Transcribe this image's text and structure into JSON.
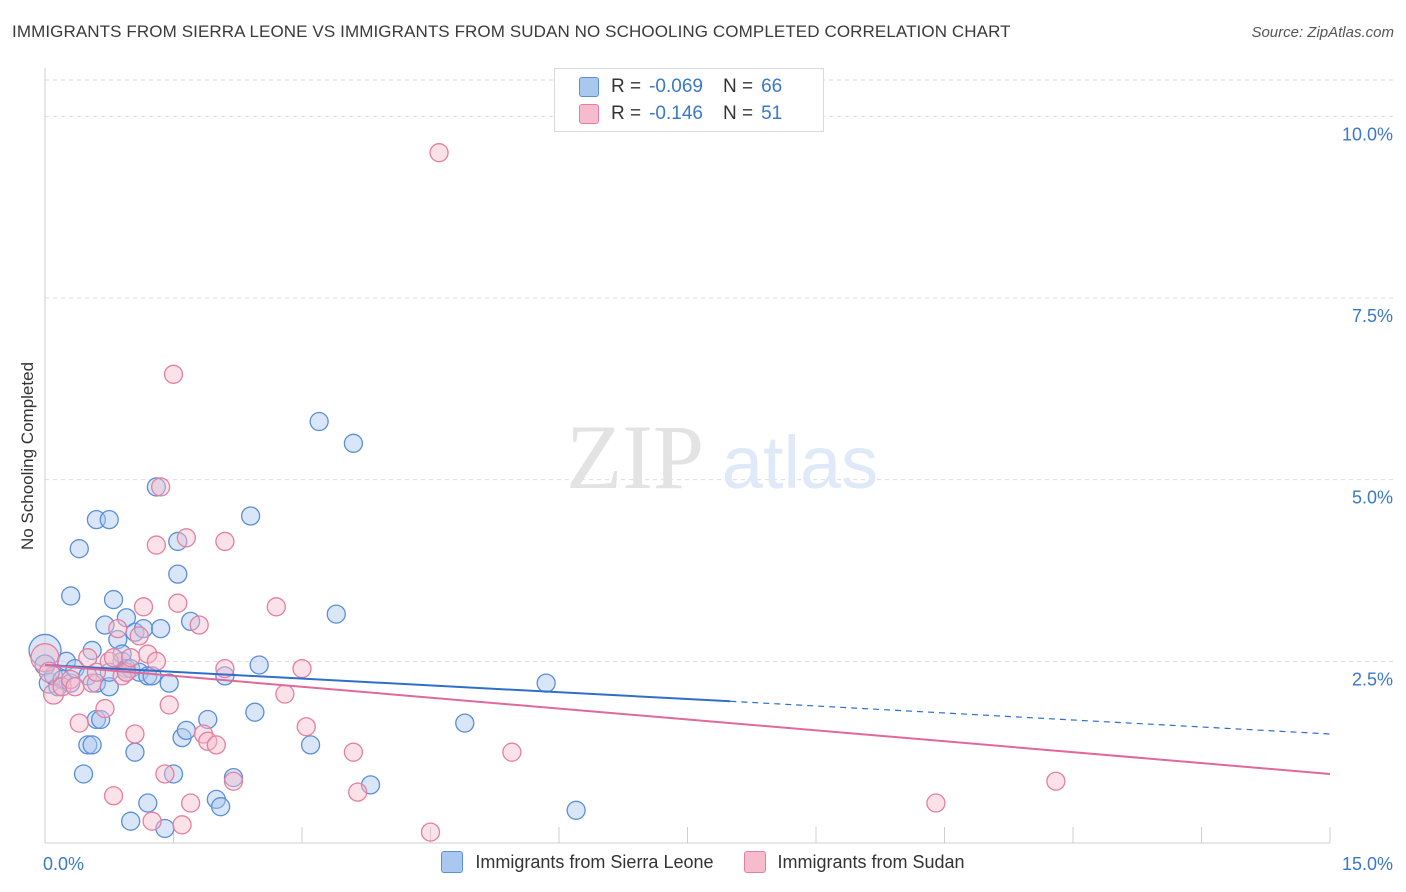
{
  "header": {
    "title": "IMMIGRANTS FROM SIERRA LEONE VS IMMIGRANTS FROM SUDAN NO SCHOOLING COMPLETED CORRELATION CHART",
    "source": "Source: ZipAtlas.com"
  },
  "watermark": {
    "zip": "ZIP",
    "atlas": "atlas"
  },
  "legend": {
    "rows": [
      {
        "r_label": "R =",
        "r_value": "-0.069",
        "n_label": "N =",
        "n_value": "66"
      },
      {
        "r_label": "R =",
        "r_value": "-0.146",
        "n_label": "N =",
        "n_value": "51"
      }
    ]
  },
  "colors": {
    "blue_fill": "#aac7ef",
    "blue_stroke": "#5b8fd6",
    "blue_line": "#2f6fcb",
    "pink_fill": "#f6bccd",
    "pink_stroke": "#e57fa0",
    "pink_line": "#e0699a",
    "tick_label": "#3a78c9",
    "grid": "#dddddd"
  },
  "chart_data": {
    "type": "scatter",
    "title": "IMMIGRANTS FROM SIERRA LEONE VS IMMIGRANTS FROM SUDAN NO SCHOOLING COMPLETED CORRELATION CHART",
    "xlabel": "",
    "ylabel": "No Schooling Completed",
    "xlim": [
      0,
      15
    ],
    "ylim": [
      0,
      10.5
    ],
    "x_tick_labels": [
      "0.0%",
      "15.0%"
    ],
    "y_ticks": [
      2.5,
      5.0,
      7.5,
      10.0
    ],
    "y_tick_labels": [
      "2.5%",
      "5.0%",
      "7.5%",
      "10.0%"
    ],
    "grid": true,
    "legend_placement": "top-center",
    "series": [
      {
        "name": "Immigrants from Sierra Leone",
        "r": -0.069,
        "n": 66,
        "trend": {
          "x0": 0,
          "y0": 2.45,
          "x1": 8.0,
          "y1": 1.95,
          "dashed_to_x": 15,
          "dashed_to_y": 1.5
        },
        "points": [
          [
            0.0,
            2.65,
            16
          ],
          [
            0.0,
            2.45,
            10
          ],
          [
            0.05,
            2.2,
            10
          ],
          [
            0.1,
            2.3,
            9
          ],
          [
            0.15,
            2.15,
            9
          ],
          [
            0.2,
            2.25,
            9
          ],
          [
            0.25,
            2.5,
            9
          ],
          [
            0.3,
            2.2,
            9
          ],
          [
            0.3,
            3.4,
            9
          ],
          [
            0.35,
            2.4,
            9
          ],
          [
            0.4,
            4.05,
            9
          ],
          [
            0.45,
            0.95,
            9
          ],
          [
            0.5,
            1.35,
            9
          ],
          [
            0.55,
            1.35,
            9
          ],
          [
            0.5,
            2.3,
            9
          ],
          [
            0.55,
            2.65,
            9
          ],
          [
            0.6,
            1.7,
            9
          ],
          [
            0.6,
            2.2,
            9
          ],
          [
            0.65,
            1.7,
            9
          ],
          [
            0.6,
            4.45,
            9
          ],
          [
            0.7,
            3.0,
            9
          ],
          [
            0.75,
            2.15,
            9
          ],
          [
            0.75,
            2.35,
            9
          ],
          [
            0.8,
            3.35,
            9
          ],
          [
            0.75,
            4.45,
            9
          ],
          [
            0.85,
            2.8,
            9
          ],
          [
            0.9,
            2.5,
            9
          ],
          [
            0.9,
            2.6,
            9
          ],
          [
            0.95,
            2.4,
            9
          ],
          [
            0.95,
            2.35,
            9
          ],
          [
            0.95,
            3.1,
            9
          ],
          [
            1.0,
            2.4,
            9
          ],
          [
            1.0,
            0.3,
            9
          ],
          [
            1.05,
            1.25,
            9
          ],
          [
            1.05,
            2.9,
            9
          ],
          [
            1.1,
            2.35,
            9
          ],
          [
            1.15,
            2.95,
            9
          ],
          [
            1.2,
            0.55,
            9
          ],
          [
            1.2,
            2.3,
            9
          ],
          [
            1.25,
            2.3,
            9
          ],
          [
            1.3,
            4.9,
            9
          ],
          [
            1.35,
            2.95,
            9
          ],
          [
            1.4,
            0.2,
            9
          ],
          [
            1.45,
            2.2,
            9
          ],
          [
            1.5,
            0.95,
            9
          ],
          [
            1.55,
            3.7,
            9
          ],
          [
            1.55,
            4.15,
            9
          ],
          [
            1.6,
            1.45,
            9
          ],
          [
            1.65,
            1.55,
            9
          ],
          [
            1.7,
            3.05,
            9
          ],
          [
            1.9,
            1.7,
            9
          ],
          [
            2.0,
            0.6,
            9
          ],
          [
            2.05,
            0.5,
            9
          ],
          [
            2.1,
            2.3,
            9
          ],
          [
            2.2,
            0.9,
            9
          ],
          [
            2.4,
            4.5,
            9
          ],
          [
            2.45,
            1.8,
            9
          ],
          [
            2.5,
            2.45,
            9
          ],
          [
            3.1,
            1.35,
            9
          ],
          [
            3.2,
            5.8,
            9
          ],
          [
            3.4,
            3.15,
            9
          ],
          [
            3.6,
            5.5,
            9
          ],
          [
            3.8,
            0.8,
            9
          ],
          [
            4.9,
            1.65,
            9
          ],
          [
            5.85,
            2.2,
            9
          ],
          [
            6.2,
            0.45,
            9
          ]
        ]
      },
      {
        "name": "Immigrants from Sudan",
        "r": -0.146,
        "n": 51,
        "trend": {
          "x0": 0,
          "y0": 2.45,
          "x1": 15,
          "y1": 0.95
        },
        "points": [
          [
            0.0,
            2.55,
            14
          ],
          [
            0.05,
            2.35,
            10
          ],
          [
            0.1,
            2.05,
            10
          ],
          [
            0.2,
            2.15,
            9
          ],
          [
            0.3,
            2.25,
            9
          ],
          [
            0.35,
            2.15,
            9
          ],
          [
            0.4,
            1.65,
            9
          ],
          [
            0.5,
            2.55,
            9
          ],
          [
            0.55,
            2.2,
            9
          ],
          [
            0.6,
            2.35,
            9
          ],
          [
            0.7,
            1.85,
            9
          ],
          [
            0.75,
            2.5,
            9
          ],
          [
            0.8,
            2.55,
            9
          ],
          [
            0.8,
            0.65,
            9
          ],
          [
            0.85,
            2.95,
            9
          ],
          [
            0.9,
            2.3,
            9
          ],
          [
            0.95,
            2.35,
            9
          ],
          [
            1.0,
            2.55,
            9
          ],
          [
            1.05,
            1.5,
            9
          ],
          [
            1.1,
            2.85,
            9
          ],
          [
            1.15,
            3.25,
            9
          ],
          [
            1.2,
            2.6,
            9
          ],
          [
            1.25,
            0.3,
            9
          ],
          [
            1.3,
            4.1,
            9
          ],
          [
            1.3,
            2.5,
            9
          ],
          [
            1.35,
            4.9,
            9
          ],
          [
            1.4,
            0.95,
            9
          ],
          [
            1.45,
            1.9,
            9
          ],
          [
            1.5,
            6.45,
            9
          ],
          [
            1.55,
            3.3,
            9
          ],
          [
            1.6,
            0.25,
            9
          ],
          [
            1.65,
            4.2,
            9
          ],
          [
            1.7,
            0.55,
            9
          ],
          [
            1.8,
            3.0,
            9
          ],
          [
            1.85,
            1.5,
            9
          ],
          [
            1.9,
            1.4,
            9
          ],
          [
            2.0,
            1.35,
            9
          ],
          [
            2.1,
            2.4,
            9
          ],
          [
            2.1,
            4.15,
            9
          ],
          [
            2.2,
            0.85,
            9
          ],
          [
            2.7,
            3.25,
            9
          ],
          [
            2.8,
            2.05,
            9
          ],
          [
            3.0,
            2.4,
            9
          ],
          [
            3.05,
            1.6,
            9
          ],
          [
            3.6,
            1.25,
            9
          ],
          [
            3.65,
            0.7,
            9
          ],
          [
            4.5,
            0.15,
            9
          ],
          [
            4.6,
            9.5,
            9
          ],
          [
            5.45,
            1.25,
            9
          ],
          [
            10.4,
            0.55,
            9
          ],
          [
            11.8,
            0.85,
            9
          ]
        ]
      }
    ]
  }
}
